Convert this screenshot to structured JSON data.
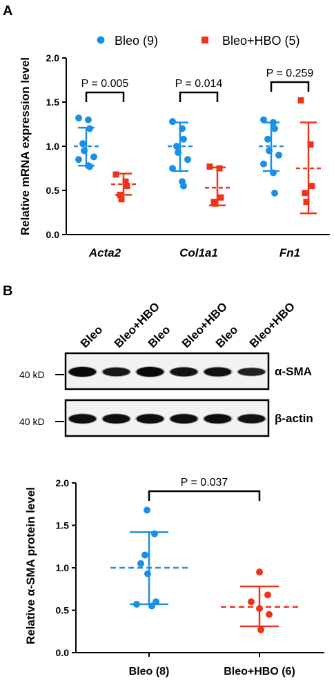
{
  "panel_a_label": "A",
  "panel_b_label": "B",
  "colors": {
    "bleo": "#1a8fe6",
    "hbo": "#f0321a"
  },
  "chart_data": [
    {
      "type": "scatter",
      "ylabel": "Relative mRNA expression level",
      "ylim": [
        0,
        2.0
      ],
      "yticks": [
        "0.0",
        "0.5",
        "1.0",
        "1.5",
        "2.0"
      ],
      "categories": [
        "Acta2",
        "Col1a1",
        "Fn1"
      ],
      "legend": [
        {
          "name": "Bleo (9)",
          "marker": "circle",
          "color": "#1a8fe6"
        },
        {
          "name": "Bleo+HBO (5)",
          "marker": "square",
          "color": "#f0321a"
        }
      ],
      "legend_position": "top",
      "pvalues": [
        "P = 0.005",
        "P = 0.014",
        "P = 0.259"
      ],
      "series": [
        {
          "name": "Bleo (9)",
          "marker": "circle",
          "groups": [
            {
              "points": [
                1.32,
                1.3,
                1.2,
                1.03,
                0.95,
                0.88,
                0.85,
                0.78,
                0.77
              ],
              "mean": 1.0,
              "sd_low": 0.78,
              "sd_high": 1.21
            },
            {
              "points": [
                1.28,
                1.2,
                1.08,
                1.0,
                0.93,
                0.85,
                0.75,
                0.6,
                0.55
              ],
              "mean": 1.0,
              "sd_low": 0.72,
              "sd_high": 1.27
            },
            {
              "points": [
                1.3,
                1.27,
                1.2,
                1.08,
                0.95,
                0.9,
                0.8,
                0.7,
                0.47
              ],
              "mean": 1.0,
              "sd_low": 0.72,
              "sd_high": 1.27
            }
          ]
        },
        {
          "name": "Bleo+HBO (5)",
          "marker": "square",
          "groups": [
            {
              "points": [
                0.68,
                0.6,
                0.55,
                0.45,
                0.4
              ],
              "mean": 0.57,
              "sd_low": 0.45,
              "sd_high": 0.69
            },
            {
              "points": [
                0.77,
                0.75,
                0.42,
                0.37,
                0.35
              ],
              "mean": 0.53,
              "sd_low": 0.33,
              "sd_high": 0.76
            },
            {
              "points": [
                1.52,
                1.02,
                0.55,
                0.47,
                0.37
              ],
              "mean": 0.75,
              "sd_low": 0.24,
              "sd_high": 1.27
            }
          ]
        }
      ]
    },
    {
      "type": "scatter",
      "ylabel": "Relative α-SMA protein level",
      "ylim": [
        0,
        2.0
      ],
      "yticks": [
        "0.0",
        "0.5",
        "1.0",
        "1.5",
        "2.0"
      ],
      "categories": [
        "Bleo (8)",
        "Bleo+HBO (6)"
      ],
      "pvalue": "P = 0.037",
      "groups": [
        {
          "name": "Bleo (8)",
          "points": [
            1.68,
            1.4,
            1.15,
            1.05,
            0.93,
            0.6,
            0.57,
            0.55
          ],
          "mean": 1.0,
          "sd_low": 0.57,
          "sd_high": 1.42
        },
        {
          "name": "Bleo+HBO (6)",
          "points": [
            0.95,
            0.68,
            0.6,
            0.52,
            0.45,
            0.27
          ],
          "mean": 0.54,
          "sd_low": 0.31,
          "sd_high": 0.78
        }
      ]
    }
  ],
  "western_blot": {
    "lanes": [
      "Bleo",
      "Bleo+HBO",
      "Bleo",
      "Bleo+HBO",
      "Bleo",
      "Bleo+HBO"
    ],
    "rows": [
      {
        "label": "α-SMA",
        "marker": "40 kD",
        "intensities": [
          1.0,
          0.75,
          1.0,
          0.82,
          0.85,
          0.55
        ]
      },
      {
        "label": "β-actin",
        "marker": "40 kD",
        "intensities": [
          0.9,
          0.9,
          0.9,
          0.9,
          0.9,
          0.82
        ]
      }
    ]
  }
}
